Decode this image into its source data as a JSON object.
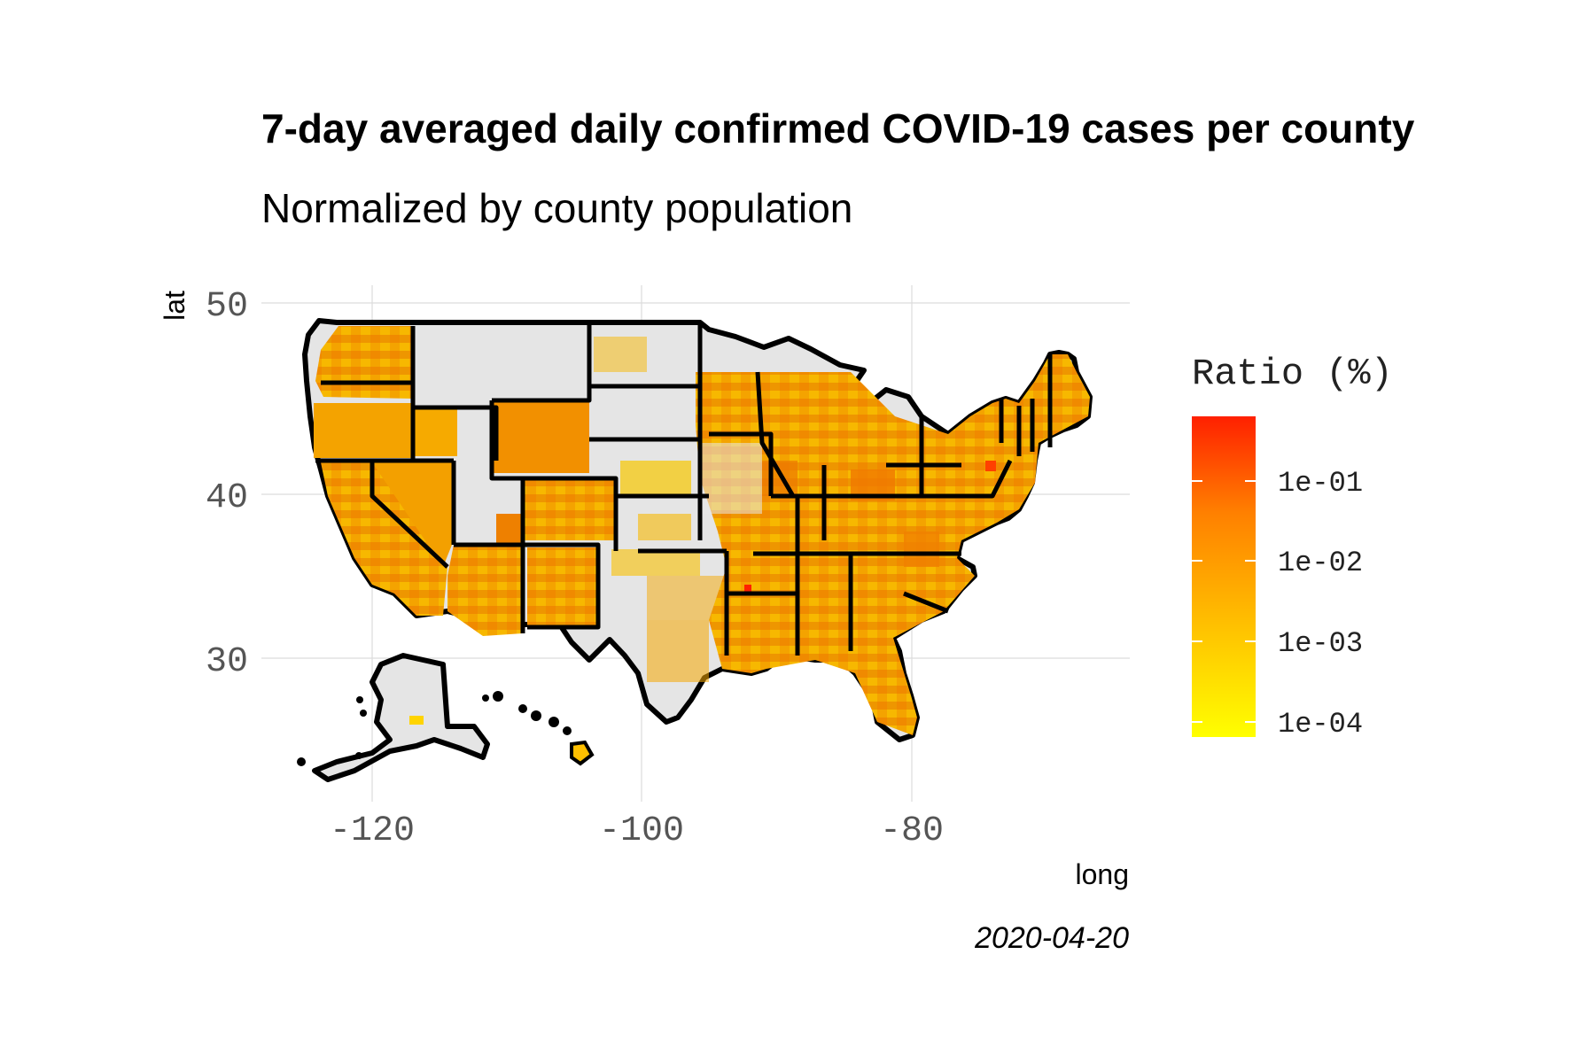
{
  "title": "7-day averaged daily confirmed COVID-19 cases per county",
  "subtitle": "Normalized by county population",
  "caption": "2020-04-20",
  "x_axis": {
    "label": "long",
    "ticks": [
      "-120",
      "-100",
      "-80"
    ]
  },
  "y_axis": {
    "label": "lat",
    "ticks": [
      "50",
      "40",
      "30"
    ]
  },
  "legend": {
    "title": "Ratio (%)",
    "ticks": [
      "1e-01",
      "1e-02",
      "1e-03",
      "1e-04"
    ],
    "scale": "log10",
    "color_low": "#ffff00",
    "color_high": "#ff2000"
  },
  "colors": {
    "no_data_fill": "#e5e5e5",
    "state_border": "#000000",
    "grid": "#dcdcdc"
  }
}
